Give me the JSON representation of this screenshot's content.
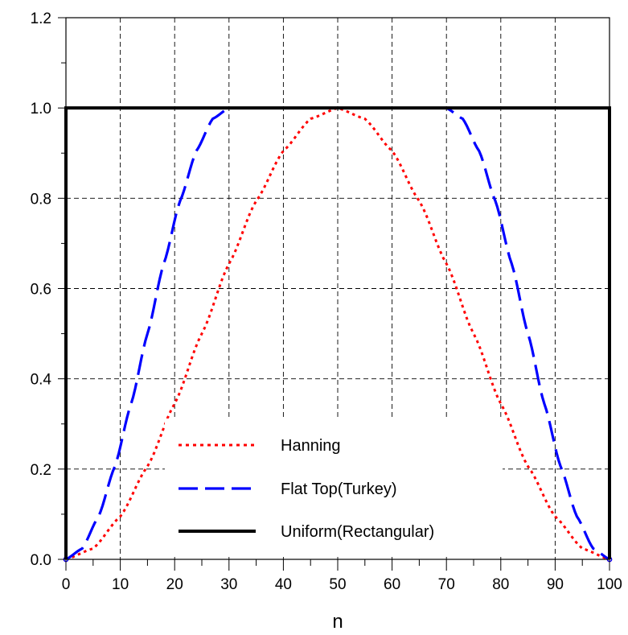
{
  "chart_data": {
    "type": "line",
    "title": "",
    "xlabel": "n",
    "ylabel": "",
    "xlim": [
      0,
      100
    ],
    "ylim": [
      0,
      1.2
    ],
    "x_ticks": [
      0,
      10,
      20,
      30,
      40,
      50,
      60,
      70,
      80,
      90,
      100
    ],
    "x_tick_labels": [
      "0",
      "10",
      "20",
      "30",
      "40",
      "50",
      "60",
      "70",
      "80",
      "90",
      "100"
    ],
    "y_ticks": [
      0,
      0.2,
      0.4,
      0.6,
      0.8,
      1.0,
      1.2
    ],
    "y_tick_labels": [
      "0.0",
      "0.2",
      "0.4",
      "0.6",
      "0.8",
      "1.0",
      "1.2"
    ],
    "grid": true,
    "legend_position": "bottom-center",
    "series": [
      {
        "name": "Hanning",
        "color": "#ff0000",
        "style": "dotted",
        "x": [
          0,
          5,
          10,
          15,
          20,
          25,
          30,
          35,
          40,
          45,
          50,
          55,
          60,
          65,
          70,
          75,
          80,
          85,
          90,
          95,
          100
        ],
        "y": [
          0,
          0.024,
          0.095,
          0.206,
          0.345,
          0.5,
          0.655,
          0.794,
          0.905,
          0.976,
          1.0,
          0.976,
          0.905,
          0.794,
          0.655,
          0.5,
          0.345,
          0.206,
          0.095,
          0.024,
          0
        ]
      },
      {
        "name": "Flat Top(Turkey)",
        "color": "#0000ff",
        "style": "dashed",
        "x": [
          0,
          3,
          6,
          9,
          12,
          15,
          18,
          21,
          24,
          27,
          30,
          40,
          50,
          60,
          70,
          73,
          76,
          79,
          82,
          85,
          88,
          91,
          94,
          97,
          100
        ],
        "y": [
          0,
          0.024,
          0.095,
          0.206,
          0.345,
          0.5,
          0.655,
          0.794,
          0.905,
          0.976,
          1.0,
          1.0,
          1.0,
          1.0,
          1.0,
          0.976,
          0.905,
          0.794,
          0.655,
          0.5,
          0.345,
          0.206,
          0.095,
          0.024,
          0
        ]
      },
      {
        "name": "Uniform(Rectangular)",
        "color": "#000000",
        "style": "solid",
        "x": [
          0,
          0,
          100,
          100
        ],
        "y": [
          0,
          1.0,
          1.0,
          0
        ]
      }
    ]
  }
}
